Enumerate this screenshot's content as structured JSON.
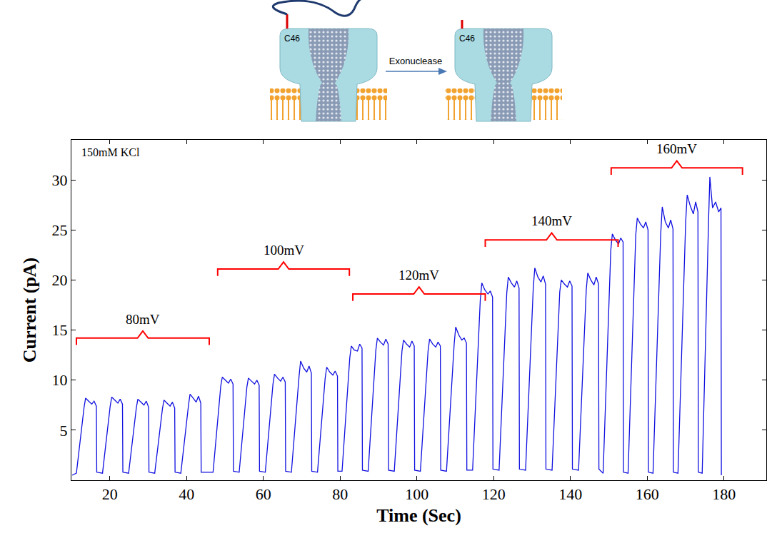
{
  "chart_data": {
    "type": "line",
    "xlabel": "Time (Sec)",
    "ylabel": "Current (pA)",
    "annotations": [
      "150mM KCl"
    ],
    "color": "#1010e0",
    "xlim": [
      10,
      191
    ],
    "xticks": [
      20,
      40,
      60,
      80,
      100,
      120,
      140,
      160,
      180
    ],
    "ylim": [
      0,
      34
    ],
    "yticks": [
      5,
      10,
      15,
      20,
      25,
      30
    ],
    "grid": false,
    "x": [
      10.2,
      11.3,
      13.3,
      13.7,
      14.5,
      15.3,
      15.9,
      16.5,
      16.6,
      18.1,
      20.1,
      20.5,
      21.3,
      22.1,
      22.7,
      23.3,
      23.4,
      24.9,
      26.9,
      27.3,
      28.1,
      28.9,
      29.5,
      30.1,
      30.2,
      31.7,
      33.7,
      34.1,
      34.9,
      35.7,
      36.3,
      36.9,
      37.0,
      38.5,
      40.5,
      40.9,
      41.7,
      42.5,
      43.1,
      43.7,
      43.8,
      46.9,
      48.9,
      49.3,
      50.1,
      50.9,
      51.5,
      52.1,
      52.2,
      53.7,
      55.7,
      56.1,
      56.9,
      57.7,
      58.3,
      58.9,
      59.0,
      60.5,
      62.5,
      62.9,
      63.7,
      64.5,
      65.1,
      65.7,
      65.8,
      67.3,
      69.3,
      69.7,
      70.5,
      71.3,
      71.9,
      72.5,
      72.6,
      74.1,
      76.1,
      76.5,
      77.3,
      78.1,
      78.7,
      79.3,
      79.4,
      80.5,
      82.5,
      82.9,
      83.7,
      84.5,
      85.1,
      85.7,
      85.8,
      87.3,
      89.3,
      89.7,
      90.5,
      91.3,
      91.9,
      92.5,
      92.6,
      94.1,
      96.1,
      96.5,
      97.3,
      98.1,
      98.7,
      99.3,
      99.4,
      100.9,
      102.9,
      103.3,
      104.1,
      104.9,
      105.5,
      106.1,
      106.2,
      107.7,
      109.7,
      110.1,
      110.9,
      111.7,
      112.3,
      112.9,
      113.0,
      114.5,
      116.5,
      116.9,
      117.7,
      118.5,
      119.1,
      119.7,
      119.8,
      121.4,
      123.4,
      123.8,
      124.6,
      125.4,
      126.0,
      126.6,
      126.7,
      128.3,
      130.3,
      130.7,
      131.5,
      132.3,
      132.9,
      133.5,
      133.6,
      135.2,
      137.2,
      137.6,
      138.4,
      139.2,
      139.8,
      140.4,
      140.5,
      142.1,
      144.1,
      144.5,
      145.3,
      146.1,
      146.7,
      147.3,
      147.4,
      148.5,
      150.5,
      150.9,
      151.7,
      152.5,
      153.1,
      153.7,
      153.8,
      155.0,
      157.0,
      157.4,
      158.2,
      159.0,
      159.6,
      160.2,
      160.3,
      161.5,
      163.5,
      163.9,
      164.7,
      165.5,
      166.1,
      166.7,
      166.8,
      168.0,
      170.0,
      170.4,
      171.2,
      172.0,
      172.6,
      173.2,
      173.3,
      174.3,
      176.0,
      176.3,
      177.0,
      177.8,
      178.6,
      179.2,
      179.3
    ],
    "values": [
      0.5,
      0.7,
      7.3,
      8.2,
      7.9,
      7.6,
      7.9,
      7.4,
      0.8,
      0.7,
      7.4,
      8.3,
      8.0,
      7.7,
      8.1,
      7.6,
      0.8,
      0.7,
      7.2,
      8.1,
      7.8,
      7.5,
      7.9,
      7.3,
      0.8,
      0.7,
      7.1,
      8.0,
      7.7,
      7.4,
      7.8,
      7.2,
      0.8,
      0.7,
      7.5,
      8.6,
      8.2,
      7.8,
      8.4,
      7.7,
      0.8,
      0.8,
      9.4,
      10.3,
      10.0,
      9.7,
      10.1,
      9.6,
      0.9,
      0.8,
      9.3,
      10.2,
      9.9,
      9.6,
      10.0,
      9.5,
      0.9,
      0.8,
      9.6,
      10.6,
      10.2,
      9.9,
      10.3,
      9.8,
      0.9,
      0.8,
      10.4,
      11.9,
      11.2,
      10.8,
      11.4,
      10.7,
      0.9,
      0.8,
      10.2,
      11.3,
      10.8,
      10.5,
      10.9,
      10.4,
      0.9,
      0.9,
      12.2,
      13.4,
      13.0,
      12.9,
      13.6,
      13.2,
      1.0,
      0.9,
      13.0,
      14.2,
      13.8,
      13.5,
      14.1,
      13.6,
      1.0,
      0.9,
      12.9,
      14.0,
      13.6,
      13.3,
      13.9,
      13.4,
      1.0,
      0.9,
      12.9,
      14.1,
      13.6,
      13.3,
      13.8,
      13.4,
      1.0,
      0.9,
      13.6,
      15.3,
      14.5,
      14.0,
      14.2,
      13.7,
      1.0,
      1.0,
      18.0,
      19.7,
      19.0,
      18.6,
      18.9,
      18.3,
      1.1,
      1.0,
      18.7,
      20.3,
      19.7,
      19.3,
      19.9,
      19.2,
      1.1,
      1.0,
      19.2,
      21.2,
      20.3,
      19.8,
      20.4,
      19.6,
      1.1,
      1.0,
      18.8,
      20.0,
      19.6,
      19.3,
      19.9,
      19.4,
      1.1,
      1.0,
      19.0,
      20.7,
      20.0,
      19.5,
      20.3,
      19.6,
      1.1,
      0.7,
      23.0,
      24.6,
      24.0,
      23.6,
      24.2,
      23.8,
      0.8,
      0.7,
      24.5,
      26.2,
      25.6,
      25.2,
      25.8,
      25.0,
      0.8,
      0.7,
      24.6,
      27.3,
      25.8,
      25.2,
      26.0,
      25.1,
      0.8,
      0.7,
      25.8,
      28.5,
      27.4,
      26.6,
      27.8,
      26.8,
      0.8,
      0.7,
      26.4,
      30.3,
      27.2,
      27.8,
      26.8,
      27.2,
      0.5
    ],
    "segments": [
      {
        "label": "80mV",
        "x": [
          11.3,
          45.9
        ],
        "y": 14.2,
        "color": "#ff0000"
      },
      {
        "label": "100mV",
        "x": [
          48.1,
          82.4
        ],
        "y": 21.1,
        "color": "#ff0000"
      },
      {
        "label": "120mV",
        "x": [
          83.3,
          117.8
        ],
        "y": 18.6,
        "color": "#ff0000"
      },
      {
        "label": "140mV",
        "x": [
          117.8,
          152.4
        ],
        "y": 24.0,
        "color": "#ff0000"
      },
      {
        "label": "160mV",
        "x": [
          150.6,
          184.8
        ],
        "y": 31.2,
        "color": "#ff0000"
      }
    ]
  },
  "diagram": {
    "site_label": "C46",
    "arrow_label": "Exonuclease"
  }
}
